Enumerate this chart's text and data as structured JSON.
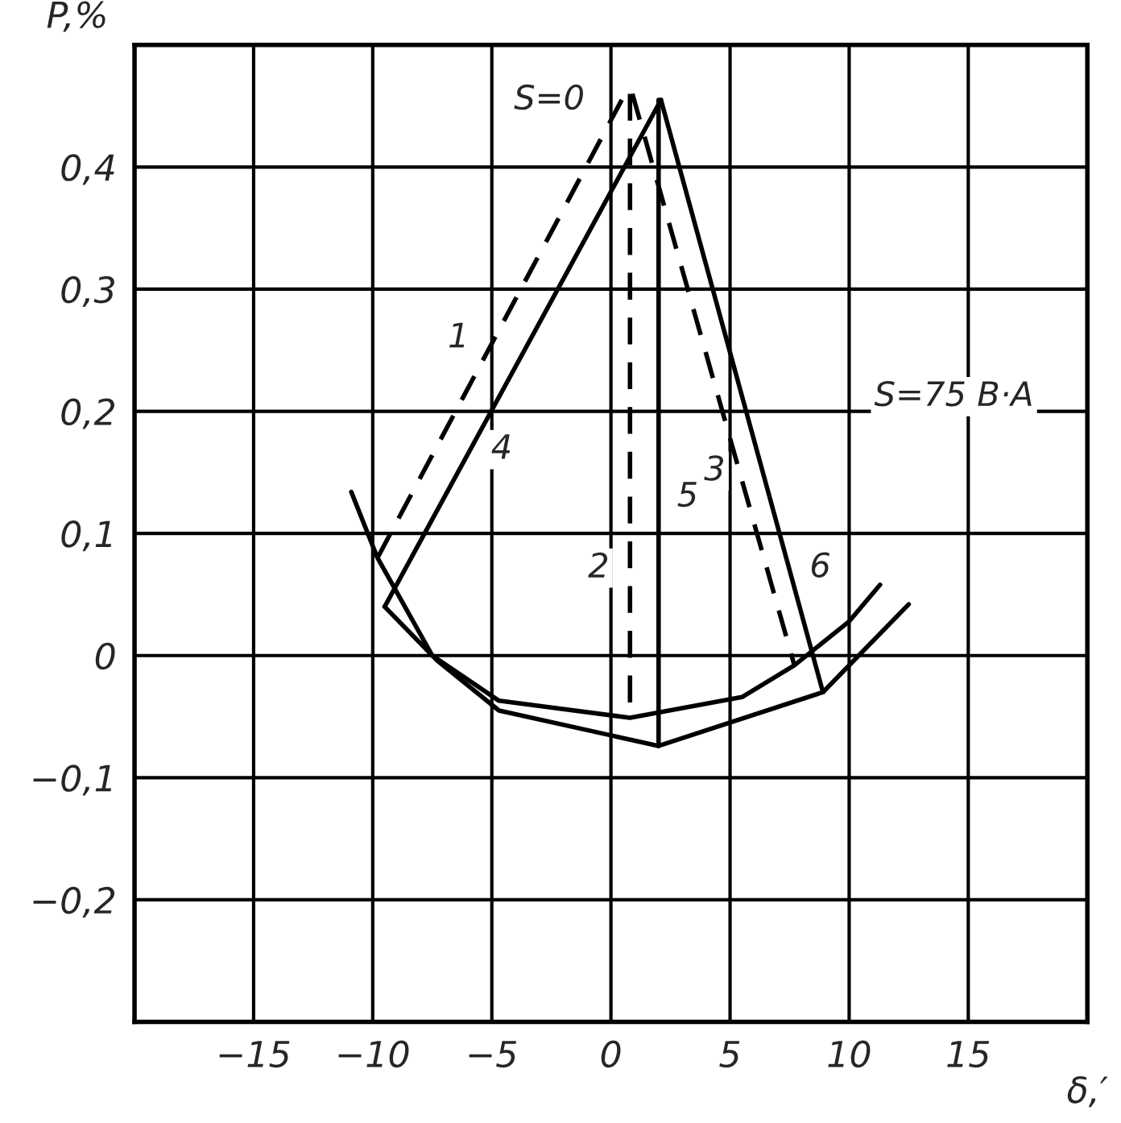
{
  "chart_data": {
    "type": "line",
    "xlabel": "δ,′",
    "ylabel": "P,%",
    "xlim": [
      -20,
      20
    ],
    "ylim": [
      -0.3,
      0.5
    ],
    "xticks": [
      {
        "value": -15,
        "label": "−15"
      },
      {
        "value": -10,
        "label": "−10"
      },
      {
        "value": -5,
        "label": "−5"
      },
      0,
      5,
      10,
      15
    ],
    "yticks": [
      {
        "value": -0.2,
        "label": "−0,2"
      },
      {
        "value": -0.1,
        "label": "−0,1"
      },
      0,
      {
        "value": 0.1,
        "label": "0,1"
      },
      {
        "value": 0.2,
        "label": "0,2"
      },
      {
        "value": 0.3,
        "label": "0,3"
      },
      {
        "value": 0.4,
        "label": "0,4"
      }
    ],
    "grid": true,
    "marker": "none",
    "series": [
      {
        "name": "1",
        "color": "#000000",
        "line_style": "dashed",
        "x": [
          -9.8,
          0.7
        ],
        "values": [
          0.08,
          0.464
        ]
      },
      {
        "name": "2",
        "color": "#000000",
        "line_style": "dashed",
        "x": [
          0.8,
          0.8
        ],
        "values": [
          0.46,
          -0.051
        ]
      },
      {
        "name": "3",
        "color": "#000000",
        "line_style": "dashed",
        "x": [
          0.9,
          7.7
        ],
        "values": [
          0.46,
          -0.008
        ]
      },
      {
        "name": "4",
        "color": "#000000",
        "line_style": "solid",
        "x": [
          -9.5,
          2.1
        ],
        "values": [
          0.04,
          0.455
        ]
      },
      {
        "name": "5",
        "color": "#000000",
        "line_style": "solid",
        "x": [
          2.0,
          2.0
        ],
        "values": [
          0.455,
          -0.074
        ]
      },
      {
        "name": "6",
        "color": "#000000",
        "line_style": "solid",
        "x": [
          2.1,
          8.9
        ],
        "values": [
          0.455,
          -0.03
        ]
      },
      {
        "color": "#000000",
        "line_style": "solid",
        "x": [
          -10.9,
          -9.8,
          -7.5,
          -4.7,
          0.8,
          5.5,
          7.7,
          10.0,
          11.3
        ],
        "values": [
          0.134,
          0.08,
          0.0,
          -0.037,
          -0.051,
          -0.034,
          -0.008,
          0.028,
          0.058
        ]
      },
      {
        "color": "#000000",
        "line_style": "solid",
        "x": [
          -9.5,
          -7.3,
          -4.7,
          2.0,
          8.9,
          12.5
        ],
        "values": [
          0.04,
          -0.004,
          -0.045,
          -0.074,
          -0.03,
          0.042
        ]
      }
    ],
    "annotations": [
      {
        "text": "S=0",
        "x": 0.7,
        "y": 0.464
      },
      "S=75 B·A"
    ]
  }
}
